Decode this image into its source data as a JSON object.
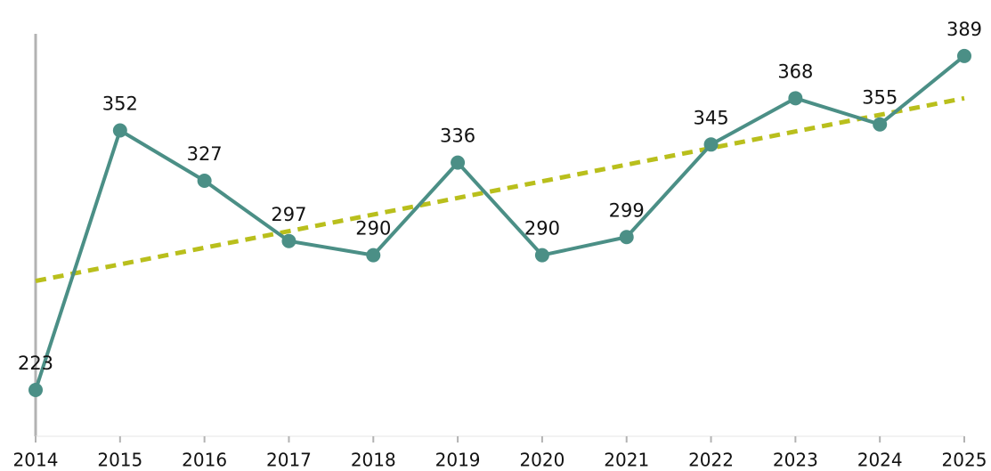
{
  "chart_data": {
    "type": "line",
    "categories": [
      "2014",
      "2015",
      "2016",
      "2017",
      "2018",
      "2019",
      "2020",
      "2021",
      "2022",
      "2023",
      "2024",
      "2025"
    ],
    "series": [
      {
        "color": "#4b8f86",
        "values": [
          223,
          352,
          327,
          297,
          290,
          336,
          290,
          299,
          345,
          368,
          355,
          389
        ]
      }
    ],
    "ylim": [
      200,
      400
    ],
    "trendline": {
      "color": "#b9bf1c",
      "dashed": true
    }
  }
}
